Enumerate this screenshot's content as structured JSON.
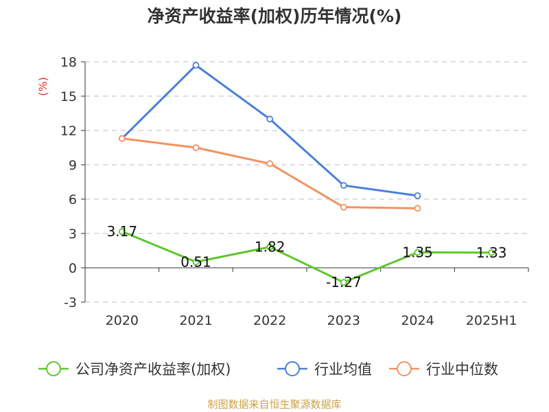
{
  "source": "制图数据来自恒生聚源数据库",
  "chart_data": {
    "type": "line",
    "title": "净资产收益率(加权)历年情况(%)",
    "ylabel": "(%)",
    "xlabel": "",
    "categories": [
      "2020",
      "2021",
      "2022",
      "2023",
      "2024",
      "2025H1"
    ],
    "ylim": [
      -3,
      18
    ],
    "yticks": [
      -3,
      0,
      3,
      6,
      9,
      12,
      15,
      18
    ],
    "grid": "horizontal dashed",
    "legend_position": "bottom",
    "series": [
      {
        "name": "公司净资产收益率(加权)",
        "color": "#5cc72b",
        "values": [
          3.17,
          0.51,
          1.82,
          -1.27,
          1.35,
          1.33
        ],
        "labels": [
          "3.17",
          "0.51",
          "1.82",
          "-1.27",
          "1.35",
          "1.33"
        ]
      },
      {
        "name": "行业均值",
        "color": "#4a7fd9",
        "values": [
          11.3,
          17.7,
          13.0,
          7.2,
          6.3,
          null
        ]
      },
      {
        "name": "行业中位数",
        "color": "#f39161",
        "values": [
          11.3,
          10.5,
          9.1,
          5.3,
          5.2,
          null
        ]
      }
    ]
  }
}
